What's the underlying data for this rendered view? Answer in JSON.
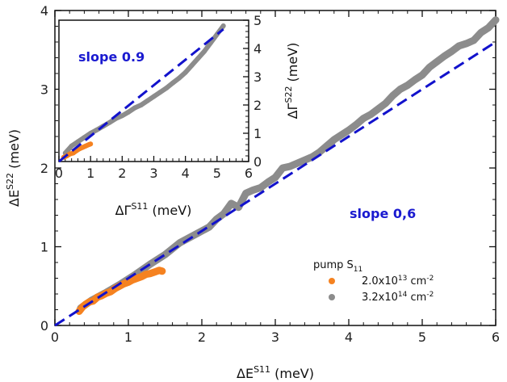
{
  "colors": {
    "fit": "#1212cc",
    "series_low": "#f58220",
    "series_high": "#8c8c8c",
    "axis": "#111111",
    "slope_text": "#1a1ad0"
  },
  "chart_data": [
    {
      "panel": "main",
      "type": "scatter",
      "xlabel": "ΔE",
      "xlabel_sup": "S11",
      "xlabel_unit": " (meV)",
      "ylabel": "ΔE",
      "ylabel_sup": "S22",
      "ylabel_unit": " (meV)",
      "xlim": [
        0,
        6
      ],
      "ylim": [
        0,
        4
      ],
      "xticks": [
        "0",
        "1",
        "2",
        "3",
        "4",
        "5",
        "6"
      ],
      "yticks": [
        "0",
        "1",
        "2",
        "3",
        "4"
      ],
      "annotation": "slope 0,6",
      "legend": {
        "title": "pump S",
        "title_sub": "11",
        "position": "lower-right",
        "entries": [
          {
            "text": "2.0x10",
            "sup": "13",
            "unit": " cm",
            "unit_sup": "-2"
          },
          {
            "text": "3.2x10",
            "sup": "14",
            "unit": " cm",
            "unit_sup": "-2"
          }
        ]
      },
      "fit_line": {
        "slope": 0.6,
        "x": [
          0,
          6
        ]
      },
      "series": [
        {
          "color": "series_low",
          "x": [
            0.33,
            0.38,
            0.42,
            0.47,
            0.52,
            0.58,
            0.64,
            0.7,
            0.76,
            0.82,
            0.88,
            0.94,
            1.0,
            1.06,
            1.12,
            1.18,
            1.24,
            1.3,
            1.36,
            1.42,
            1.46
          ],
          "y": [
            0.18,
            0.24,
            0.27,
            0.3,
            0.31,
            0.36,
            0.38,
            0.41,
            0.43,
            0.47,
            0.5,
            0.53,
            0.55,
            0.58,
            0.6,
            0.62,
            0.65,
            0.66,
            0.68,
            0.7,
            0.69
          ]
        },
        {
          "color": "series_high",
          "x": [
            0.35,
            0.5,
            0.7,
            0.9,
            1.1,
            1.3,
            1.5,
            1.7,
            1.9,
            2.1,
            2.2,
            2.3,
            2.4,
            2.5,
            2.6,
            2.7,
            2.8,
            2.9,
            3.0,
            3.1,
            3.2,
            3.3,
            3.4,
            3.5,
            3.6,
            3.7,
            3.8,
            3.9,
            4.0,
            4.1,
            4.2,
            4.3,
            4.4,
            4.5,
            4.6,
            4.7,
            4.8,
            4.9,
            5.0,
            5.1,
            5.2,
            5.3,
            5.4,
            5.5,
            5.6,
            5.7,
            5.8,
            5.9,
            6.0
          ],
          "y": [
            0.22,
            0.32,
            0.42,
            0.53,
            0.65,
            0.78,
            0.9,
            1.05,
            1.15,
            1.25,
            1.35,
            1.42,
            1.55,
            1.5,
            1.68,
            1.72,
            1.75,
            1.82,
            1.88,
            2.0,
            2.02,
            2.06,
            2.1,
            2.14,
            2.2,
            2.28,
            2.36,
            2.42,
            2.48,
            2.55,
            2.63,
            2.68,
            2.75,
            2.82,
            2.92,
            3.0,
            3.05,
            3.12,
            3.18,
            3.28,
            3.35,
            3.42,
            3.48,
            3.55,
            3.58,
            3.62,
            3.72,
            3.78,
            3.88
          ]
        }
      ]
    },
    {
      "panel": "inset",
      "type": "scatter",
      "xlabel": "ΔΓ",
      "xlabel_sup": "S11",
      "xlabel_unit": " (meV)",
      "ylabel": "ΔΓ",
      "ylabel_sup": "S22",
      "ylabel_unit": " (meV)",
      "xlim": [
        0,
        6
      ],
      "ylim": [
        0,
        5
      ],
      "xticks": [
        "0",
        "1",
        "2",
        "3",
        "4",
        "5",
        "6"
      ],
      "yticks": [
        "0",
        "1",
        "2",
        "3",
        "4",
        "5"
      ],
      "annotation": "slope 0.9",
      "fit_line": {
        "slope": 0.9,
        "x": [
          0,
          5.2
        ]
      },
      "series": [
        {
          "color": "series_low",
          "x": [
            0.15,
            0.25,
            0.35,
            0.45,
            0.55,
            0.65,
            0.75,
            0.85,
            0.95,
            1.0
          ],
          "y": [
            0.15,
            0.2,
            0.27,
            0.3,
            0.38,
            0.45,
            0.5,
            0.55,
            0.6,
            0.62
          ]
        },
        {
          "color": "series_high",
          "x": [
            0.2,
            0.4,
            0.6,
            0.8,
            1.0,
            1.2,
            1.4,
            1.6,
            1.8,
            2.0,
            2.2,
            2.4,
            2.6,
            2.8,
            3.0,
            3.2,
            3.4,
            3.6,
            3.8,
            4.0,
            4.2,
            4.4,
            4.6,
            4.8,
            5.0,
            5.2
          ],
          "y": [
            0.3,
            0.55,
            0.7,
            0.85,
            1.0,
            1.12,
            1.25,
            1.38,
            1.52,
            1.62,
            1.75,
            1.9,
            2.0,
            2.15,
            2.3,
            2.45,
            2.6,
            2.78,
            2.95,
            3.15,
            3.4,
            3.65,
            3.9,
            4.2,
            4.5,
            4.8
          ]
        }
      ]
    }
  ]
}
